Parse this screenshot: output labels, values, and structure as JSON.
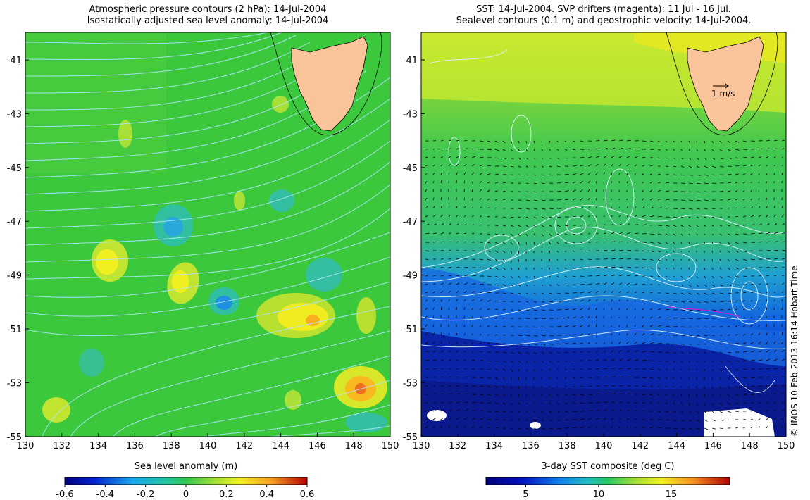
{
  "left_panel": {
    "title_line1": "Atmospheric pressure contours (2 hPa): 14-Jul-2004",
    "title_line2": "Isostatically adjusted sea level anomaly: 14-Jul-2004",
    "colorbar_label": "Sea level anomaly (m)",
    "colorbar_ticks": [
      "-0.6",
      "-0.4",
      "-0.2",
      "0",
      "0.2",
      "0.4",
      "0.6"
    ],
    "colors": {
      "land": "#f9c49a",
      "ocean_base": "#3cc83c",
      "contour": "#aee6ff"
    }
  },
  "right_panel": {
    "title_line1": "SST: 14-Jul-2004. SVP drifters (magenta): 11 Jul - 16 Jul.",
    "title_line2": "Sealevel contours (0.1 m) and geostrophic velocity: 14-Jul-2004.",
    "colorbar_label": "3-day SST composite (deg C)",
    "colorbar_ticks": [
      "5",
      "10",
      "15"
    ],
    "velocity_scale_label": "1 m/s",
    "colors": {
      "land": "#f9c49a",
      "cold": "#0a1e9c",
      "warm": "#a8e63c"
    }
  },
  "axes": {
    "x_ticks": [
      "130",
      "132",
      "134",
      "136",
      "138",
      "140",
      "142",
      "144",
      "146",
      "148",
      "150"
    ],
    "y_ticks": [
      "-41",
      "-43",
      "-45",
      "-47",
      "-49",
      "-51",
      "-53",
      "-55"
    ]
  },
  "copyright": "© IMOS 10-Feb-2013 16:14 Hobart Time"
}
